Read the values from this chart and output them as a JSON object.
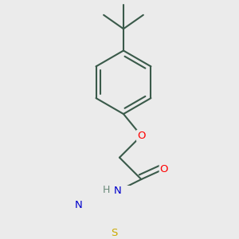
{
  "bg_color": "#ebebeb",
  "bond_color": "#3a5a4a",
  "bond_width": 1.5,
  "atom_colors": {
    "O": "#ff0000",
    "N": "#0000cc",
    "S": "#ccaa00",
    "H": "#6a8a7a"
  },
  "font_size": 9.5
}
